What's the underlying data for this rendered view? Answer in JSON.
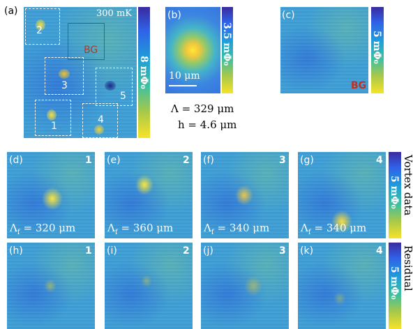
{
  "panel_a": {
    "label": "(a)",
    "temperature": "300 mK",
    "colorbar": "8 mΦ₀",
    "regions": [
      "2",
      "BG",
      "3",
      "5",
      "1",
      "4"
    ]
  },
  "panel_b": {
    "label": "(b)",
    "colorbar": "3.5 mΦ₀",
    "scale_bar": "10 μm",
    "fit": [
      "Λ = 329 μm",
      "h = 4.6 μm"
    ]
  },
  "panel_c": {
    "label": "(c)",
    "colorbar": "5 mΦ₀",
    "region": "BG"
  },
  "vortex_row": {
    "side_label": "Vortex data",
    "colorbar": "5 mΦ₀",
    "panels": [
      {
        "label": "(d)",
        "vortex": "1",
        "lambda": "Λ",
        "lambda_sub": "f",
        "lambda_value": "= 320 μm"
      },
      {
        "label": "(e)",
        "vortex": "2",
        "lambda": "Λ",
        "lambda_sub": "f",
        "lambda_value": "= 360 μm"
      },
      {
        "label": "(f)",
        "vortex": "3",
        "lambda": "Λ",
        "lambda_sub": "f",
        "lambda_value": "= 340 μm"
      },
      {
        "label": "(g)",
        "vortex": "4",
        "lambda": "Λ",
        "lambda_sub": "f",
        "lambda_value": "= 340 μm"
      }
    ]
  },
  "residual_row": {
    "side_label": "Residual",
    "colorbar": "5 mΦ₀",
    "panels": [
      {
        "label": "(h)",
        "vortex": "1"
      },
      {
        "label": "(i)",
        "vortex": "2"
      },
      {
        "label": "(j)",
        "vortex": "3"
      },
      {
        "label": "(k)",
        "vortex": "4"
      }
    ]
  }
}
